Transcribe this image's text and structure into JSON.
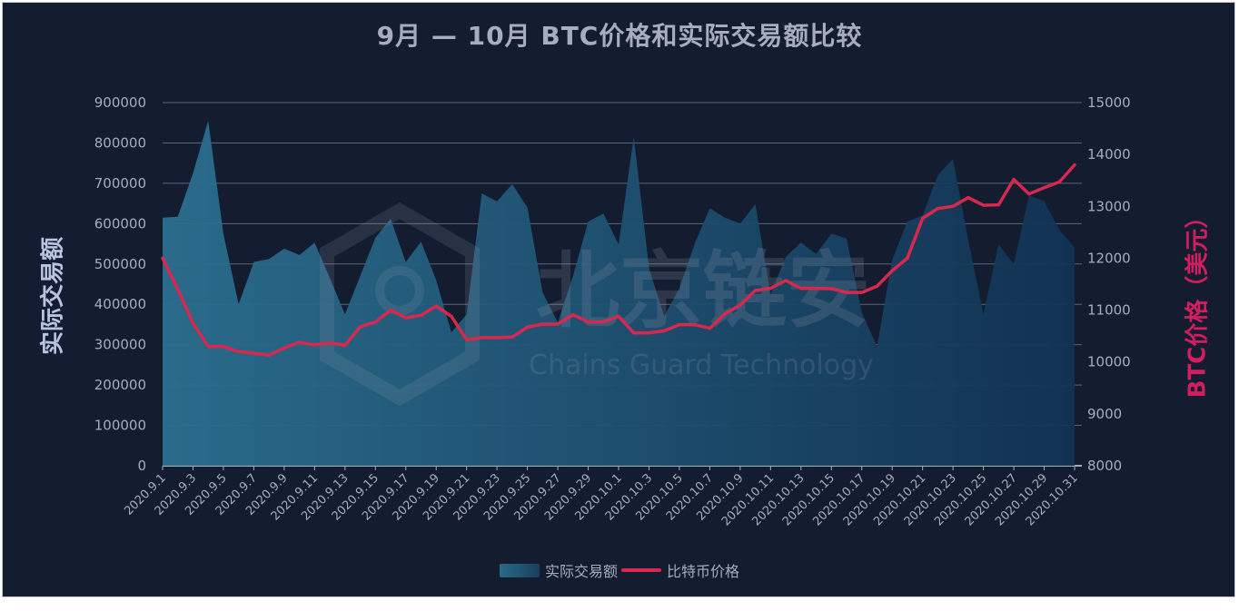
{
  "title": "9月 — 10月 BTC价格和实际交易额比较",
  "watermark": {
    "cn": "北京链安",
    "en": "Chains Guard Technology"
  },
  "colors": {
    "background": "#141c2f",
    "area_start": "#2b6f8f",
    "area_end": "#123354",
    "line": "#d9284f",
    "right_axis_label": "#d01e5e",
    "left_axis_label": "#b8c4e0"
  },
  "legend": [
    {
      "label": "实际交易额",
      "icon": "area-swatch"
    },
    {
      "label": "比特币价格",
      "icon": "line-swatch"
    }
  ],
  "chart_data": {
    "type": "area",
    "title": "9月 — 10月 BTC价格和实际交易额比较",
    "ylabel": "实际交易额",
    "ylabel_right": "BTC价格（美元）",
    "ylim": [
      0,
      900000
    ],
    "ylim_right": [
      8000,
      15000
    ],
    "yticks": [
      "0",
      "100000",
      "200000",
      "300000",
      "400000",
      "500000",
      "600000",
      "700000",
      "800000",
      "900000"
    ],
    "yticks_right": [
      "8000",
      "9000",
      "10000",
      "11000",
      "12000",
      "13000",
      "14000",
      "15000"
    ],
    "grid": true,
    "legend_position": "bottom",
    "x": [
      "2020.9.1",
      "2020.9.2",
      "2020.9.3",
      "2020.9.4",
      "2020.9.5",
      "2020.9.6",
      "2020.9.7",
      "2020.9.8",
      "2020.9.9",
      "2020.9.10",
      "2020.9.11",
      "2020.9.12",
      "2020.9.13",
      "2020.9.14",
      "2020.9.15",
      "2020.9.16",
      "2020.9.17",
      "2020.9.18",
      "2020.9.19",
      "2020.9.20",
      "2020.9.21",
      "2020.9.22",
      "2020.9.23",
      "2020.9.24",
      "2020.9.25",
      "2020.9.26",
      "2020.9.27",
      "2020.9.28",
      "2020.9.29",
      "2020.9.30",
      "2020.10.1",
      "2020.10.2",
      "2020.10.3",
      "2020.10.4",
      "2020.10.5",
      "2020.10.6",
      "2020.10.7",
      "2020.10.8",
      "2020.10.9",
      "2020.10.10",
      "2020.10.11",
      "2020.10.12",
      "2020.10.13",
      "2020.10.14",
      "2020.10.15",
      "2020.10.16",
      "2020.10.17",
      "2020.10.18",
      "2020.10.19",
      "2020.10.20",
      "2020.10.21",
      "2020.10.22",
      "2020.10.23",
      "2020.10.24",
      "2020.10.25",
      "2020.10.26",
      "2020.10.27",
      "2020.10.28",
      "2020.10.29",
      "2020.10.30",
      "2020.10.31"
    ],
    "xtick_labels": [
      "2020.9.1",
      "2020.9.3",
      "2020.9.5",
      "2020.9.7",
      "2020.9.9",
      "2020.9.11",
      "2020.9.13",
      "2020.9.15",
      "2020.9.17",
      "2020.9.19",
      "2020.9.21",
      "2020.9.23",
      "2020.9.25",
      "2020.9.27",
      "2020.9.29",
      "2020.10.1",
      "2020.10.3",
      "2020.10.5",
      "2020.10.7",
      "2020.10.9",
      "2020.10.11",
      "2020.10.13",
      "2020.10.15",
      "2020.10.17",
      "2020.10.19",
      "2020.10.21",
      "2020.10.23",
      "2020.10.25",
      "2020.10.27",
      "2020.10.29",
      "2020.10.31"
    ],
    "series": [
      {
        "name": "实际交易额",
        "type": "area",
        "axis": "left",
        "values": [
          615000,
          617000,
          725000,
          855000,
          575000,
          400000,
          505000,
          512000,
          538000,
          522000,
          553000,
          465000,
          375000,
          470000,
          565000,
          612000,
          505000,
          555000,
          460000,
          330000,
          375000,
          675000,
          655000,
          698000,
          640000,
          430000,
          355000,
          470000,
          605000,
          625000,
          548000,
          815000,
          490000,
          370000,
          440000,
          550000,
          638000,
          615000,
          600000,
          648000,
          425000,
          518000,
          553000,
          525000,
          575000,
          563000,
          380000,
          295000,
          510000,
          605000,
          620000,
          720000,
          760000,
          560000,
          375000,
          548000,
          500000,
          670000,
          655000,
          585000,
          540000
        ]
      },
      {
        "name": "比特币价格",
        "type": "line",
        "axis": "right",
        "values": [
          12000,
          11400,
          10750,
          10300,
          10300,
          10200,
          10170,
          10130,
          10270,
          10380,
          10330,
          10370,
          10320,
          10680,
          10770,
          11000,
          10850,
          10900,
          11080,
          10880,
          10430,
          10470,
          10470,
          10480,
          10670,
          10730,
          10730,
          10910,
          10770,
          10770,
          10880,
          10560,
          10560,
          10600,
          10720,
          10720,
          10650,
          10930,
          11100,
          11380,
          11420,
          11570,
          11420,
          11420,
          11410,
          11340,
          11340,
          11460,
          11760,
          12000,
          12770,
          12960,
          13000,
          13170,
          13020,
          13030,
          13520,
          13240,
          13360,
          13470,
          13800
        ]
      }
    ]
  }
}
